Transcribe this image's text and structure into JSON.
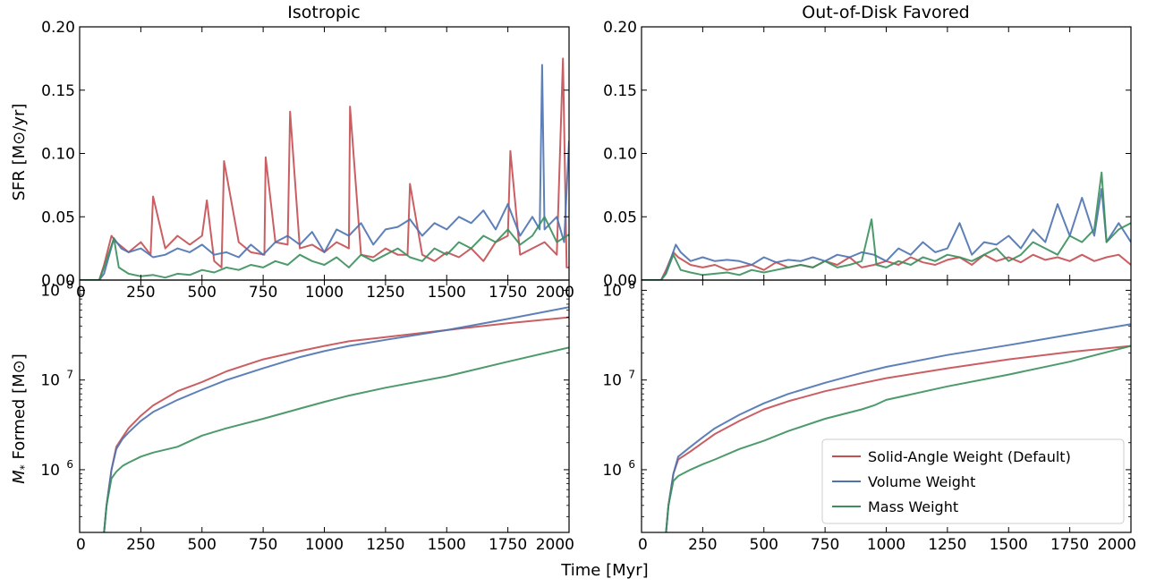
{
  "figure": {
    "xlabel": "Time [Myr]",
    "ylabel_top": "SFR [M⊙/yr]",
    "ylabel_bottom_prefix": "M",
    "ylabel_bottom_sub": "*",
    "ylabel_bottom_suffix": " Formed [M⊙]"
  },
  "legend": {
    "placement": "lower-right of bottom-right panel",
    "entries": [
      {
        "label": "Solid-Angle Weight (Default)",
        "color": "#c44e52"
      },
      {
        "label": "Volume Weight",
        "color": "#4c72b0"
      },
      {
        "label": "Mass Weight",
        "color": "#3a8f5c"
      }
    ]
  },
  "chart_data": [
    {
      "panel": "top-left",
      "type": "line",
      "title": "Isotropic",
      "xlim": [
        0,
        2000
      ],
      "ylim": [
        0,
        0.2
      ],
      "xticks": [
        "0",
        "250",
        "500",
        "750",
        "1000",
        "1250",
        "1500",
        "1750",
        "2000"
      ],
      "yticks": [
        "0.00",
        "0.05",
        "0.10",
        "0.15",
        "0.20"
      ],
      "series": [
        {
          "name": "Solid-Angle Weight (Default)",
          "color": "#c44e52",
          "x": [
            0,
            80,
            100,
            130,
            150,
            200,
            250,
            290,
            300,
            350,
            400,
            450,
            500,
            520,
            550,
            580,
            590,
            650,
            700,
            755,
            760,
            800,
            850,
            860,
            900,
            950,
            1000,
            1050,
            1100,
            1105,
            1150,
            1200,
            1250,
            1300,
            1340,
            1350,
            1400,
            1450,
            1500,
            1550,
            1600,
            1650,
            1700,
            1750,
            1760,
            1800,
            1850,
            1900,
            1950,
            1975,
            1990,
            2000
          ],
          "y": [
            0,
            0,
            0.012,
            0.035,
            0.03,
            0.022,
            0.03,
            0.02,
            0.066,
            0.025,
            0.035,
            0.028,
            0.035,
            0.063,
            0.015,
            0.01,
            0.094,
            0.03,
            0.022,
            0.02,
            0.097,
            0.03,
            0.028,
            0.133,
            0.025,
            0.028,
            0.022,
            0.03,
            0.025,
            0.137,
            0.02,
            0.018,
            0.025,
            0.02,
            0.02,
            0.076,
            0.02,
            0.015,
            0.022,
            0.018,
            0.025,
            0.015,
            0.03,
            0.035,
            0.102,
            0.02,
            0.025,
            0.03,
            0.02,
            0.175,
            0.01,
            0.01
          ]
        },
        {
          "name": "Volume Weight",
          "color": "#4c72b0",
          "x": [
            0,
            80,
            100,
            140,
            170,
            200,
            250,
            300,
            350,
            400,
            450,
            500,
            550,
            600,
            650,
            700,
            750,
            800,
            850,
            900,
            950,
            1000,
            1050,
            1100,
            1150,
            1200,
            1250,
            1300,
            1350,
            1400,
            1450,
            1500,
            1550,
            1600,
            1650,
            1700,
            1750,
            1800,
            1850,
            1880,
            1890,
            1900,
            1950,
            1980,
            2000
          ],
          "y": [
            0,
            0,
            0.005,
            0.033,
            0.025,
            0.022,
            0.025,
            0.018,
            0.02,
            0.025,
            0.022,
            0.028,
            0.02,
            0.022,
            0.018,
            0.028,
            0.02,
            0.03,
            0.035,
            0.028,
            0.038,
            0.022,
            0.04,
            0.035,
            0.045,
            0.028,
            0.04,
            0.042,
            0.048,
            0.035,
            0.045,
            0.04,
            0.05,
            0.045,
            0.055,
            0.04,
            0.06,
            0.035,
            0.05,
            0.04,
            0.17,
            0.04,
            0.05,
            0.03,
            0.11
          ]
        },
        {
          "name": "Mass Weight",
          "color": "#3a8f5c",
          "x": [
            0,
            80,
            100,
            140,
            160,
            200,
            250,
            300,
            350,
            400,
            450,
            500,
            550,
            600,
            650,
            700,
            750,
            800,
            850,
            900,
            950,
            1000,
            1050,
            1100,
            1150,
            1200,
            1250,
            1300,
            1350,
            1400,
            1450,
            1500,
            1550,
            1600,
            1650,
            1700,
            1750,
            1800,
            1850,
            1900,
            1950,
            2000
          ],
          "y": [
            0,
            0,
            0.01,
            0.033,
            0.01,
            0.005,
            0.003,
            0.004,
            0.002,
            0.005,
            0.004,
            0.008,
            0.006,
            0.01,
            0.008,
            0.012,
            0.01,
            0.015,
            0.012,
            0.02,
            0.015,
            0.012,
            0.018,
            0.01,
            0.02,
            0.015,
            0.02,
            0.025,
            0.018,
            0.015,
            0.025,
            0.02,
            0.03,
            0.025,
            0.035,
            0.03,
            0.04,
            0.028,
            0.035,
            0.05,
            0.03,
            0.036
          ]
        }
      ]
    },
    {
      "panel": "top-right",
      "type": "line",
      "title": "Out-of-Disk Favored",
      "xlim": [
        0,
        2000
      ],
      "ylim": [
        0,
        0.2
      ],
      "xticks": [],
      "yticks": [
        "0.00",
        "0.05",
        "0.10",
        "0.15",
        "0.20"
      ],
      "series": [
        {
          "name": "Solid-Angle Weight (Default)",
          "color": "#c44e52",
          "x": [
            0,
            80,
            100,
            130,
            150,
            200,
            250,
            300,
            350,
            400,
            450,
            500,
            550,
            600,
            650,
            700,
            750,
            800,
            850,
            900,
            950,
            1000,
            1050,
            1100,
            1150,
            1200,
            1250,
            1300,
            1350,
            1400,
            1450,
            1500,
            1550,
            1600,
            1650,
            1700,
            1750,
            1800,
            1850,
            1900,
            1950,
            2000
          ],
          "y": [
            0,
            0,
            0.008,
            0.022,
            0.018,
            0.012,
            0.01,
            0.012,
            0.008,
            0.01,
            0.012,
            0.008,
            0.014,
            0.01,
            0.012,
            0.01,
            0.015,
            0.012,
            0.018,
            0.01,
            0.012,
            0.015,
            0.012,
            0.018,
            0.014,
            0.012,
            0.016,
            0.018,
            0.012,
            0.02,
            0.015,
            0.018,
            0.014,
            0.02,
            0.016,
            0.018,
            0.015,
            0.02,
            0.015,
            0.018,
            0.02,
            0.012
          ]
        },
        {
          "name": "Volume Weight",
          "color": "#4c72b0",
          "x": [
            0,
            80,
            100,
            140,
            160,
            200,
            250,
            300,
            350,
            400,
            450,
            500,
            550,
            600,
            650,
            700,
            750,
            800,
            850,
            900,
            950,
            1000,
            1050,
            1100,
            1150,
            1200,
            1250,
            1300,
            1350,
            1400,
            1450,
            1500,
            1550,
            1600,
            1650,
            1700,
            1750,
            1800,
            1850,
            1880,
            1900,
            1950,
            2000
          ],
          "y": [
            0,
            0,
            0.006,
            0.028,
            0.022,
            0.015,
            0.018,
            0.015,
            0.016,
            0.015,
            0.012,
            0.018,
            0.014,
            0.016,
            0.015,
            0.018,
            0.015,
            0.02,
            0.018,
            0.022,
            0.02,
            0.015,
            0.025,
            0.02,
            0.03,
            0.022,
            0.025,
            0.045,
            0.02,
            0.03,
            0.028,
            0.035,
            0.025,
            0.04,
            0.03,
            0.06,
            0.035,
            0.065,
            0.035,
            0.072,
            0.03,
            0.045,
            0.03
          ]
        },
        {
          "name": "Mass Weight",
          "color": "#3a8f5c",
          "x": [
            0,
            80,
            100,
            130,
            160,
            200,
            250,
            300,
            350,
            400,
            450,
            500,
            550,
            600,
            650,
            700,
            750,
            800,
            850,
            900,
            940,
            960,
            1000,
            1050,
            1100,
            1150,
            1200,
            1250,
            1300,
            1350,
            1400,
            1450,
            1500,
            1550,
            1600,
            1650,
            1700,
            1750,
            1800,
            1850,
            1880,
            1900,
            1950,
            2000
          ],
          "y": [
            0,
            0,
            0.005,
            0.02,
            0.008,
            0.006,
            0.004,
            0.005,
            0.006,
            0.004,
            0.008,
            0.006,
            0.008,
            0.01,
            0.012,
            0.01,
            0.015,
            0.01,
            0.012,
            0.015,
            0.048,
            0.012,
            0.01,
            0.015,
            0.012,
            0.018,
            0.015,
            0.02,
            0.018,
            0.015,
            0.02,
            0.025,
            0.015,
            0.02,
            0.03,
            0.025,
            0.02,
            0.035,
            0.03,
            0.04,
            0.085,
            0.03,
            0.04,
            0.045
          ]
        }
      ]
    },
    {
      "panel": "bottom-left",
      "type": "line",
      "yscale": "log",
      "xlim": [
        0,
        2000
      ],
      "ylim": [
        200000,
        130000000
      ],
      "xticks": [
        "0",
        "250",
        "500",
        "750",
        "1000",
        "1250",
        "1500",
        "1750",
        "2000"
      ],
      "yticks": [
        {
          "value": 1000000,
          "base": "10",
          "exp": "6"
        },
        {
          "value": 10000000,
          "base": "10",
          "exp": "7"
        },
        {
          "value": 100000000,
          "base": "10",
          "exp": "8"
        }
      ],
      "series": [
        {
          "name": "Solid-Angle Weight (Default)",
          "color": "#c44e52",
          "x": [
            100,
            110,
            130,
            150,
            175,
            200,
            250,
            300,
            400,
            500,
            600,
            750,
            900,
            1000,
            1100,
            1250,
            1500,
            1750,
            2000
          ],
          "y": [
            200000,
            400000,
            1000000,
            1800000,
            2300000,
            2900000,
            4000000,
            5200000,
            7500000,
            9500000,
            12500000,
            17000000,
            21000000,
            24000000,
            27000000,
            30000000,
            36000000,
            43000000,
            50000000
          ]
        },
        {
          "name": "Volume Weight",
          "color": "#4c72b0",
          "x": [
            100,
            110,
            130,
            150,
            175,
            200,
            250,
            300,
            400,
            500,
            600,
            750,
            900,
            1000,
            1100,
            1250,
            1500,
            1750,
            2000
          ],
          "y": [
            200000,
            400000,
            1000000,
            1700000,
            2200000,
            2600000,
            3500000,
            4400000,
            6000000,
            7800000,
            10000000,
            13500000,
            18000000,
            21000000,
            24000000,
            28000000,
            36000000,
            48000000,
            65000000
          ]
        },
        {
          "name": "Mass Weight",
          "color": "#3a8f5c",
          "x": [
            100,
            110,
            130,
            150,
            175,
            200,
            250,
            300,
            400,
            500,
            600,
            750,
            900,
            1000,
            1100,
            1250,
            1500,
            1750,
            2000
          ],
          "y": [
            200000,
            400000,
            800000,
            950000,
            1100000,
            1200000,
            1400000,
            1550000,
            1800000,
            2400000,
            2900000,
            3700000,
            4800000,
            5700000,
            6700000,
            8200000,
            11000000,
            16000000,
            23000000
          ]
        }
      ]
    },
    {
      "panel": "bottom-right",
      "type": "line",
      "yscale": "log",
      "xlim": [
        0,
        2000
      ],
      "ylim": [
        200000,
        130000000
      ],
      "xticks": [
        "0",
        "250",
        "500",
        "750",
        "1000",
        "1250",
        "1500",
        "1750",
        "2000"
      ],
      "yticks": [
        {
          "value": 1000000,
          "base": "10",
          "exp": "6"
        },
        {
          "value": 10000000,
          "base": "10",
          "exp": "7"
        },
        {
          "value": 100000000,
          "base": "10",
          "exp": "8"
        }
      ],
      "series": [
        {
          "name": "Solid-Angle Weight (Default)",
          "color": "#c44e52",
          "x": [
            100,
            110,
            130,
            150,
            200,
            250,
            300,
            400,
            500,
            600,
            750,
            900,
            1000,
            1250,
            1500,
            1750,
            2000
          ],
          "y": [
            200000,
            400000,
            900000,
            1300000,
            1600000,
            2000000,
            2500000,
            3500000,
            4700000,
            5800000,
            7500000,
            9200000,
            10500000,
            13500000,
            17000000,
            20500000,
            24000000
          ]
        },
        {
          "name": "Volume Weight",
          "color": "#4c72b0",
          "x": [
            100,
            110,
            130,
            150,
            200,
            250,
            300,
            400,
            500,
            600,
            750,
            900,
            1000,
            1250,
            1500,
            1750,
            2000
          ],
          "y": [
            200000,
            400000,
            900000,
            1400000,
            1800000,
            2300000,
            2900000,
            4100000,
            5500000,
            7000000,
            9300000,
            12000000,
            14000000,
            19000000,
            24500000,
            32000000,
            42000000
          ]
        },
        {
          "name": "Mass Weight",
          "color": "#3a8f5c",
          "x": [
            100,
            110,
            130,
            150,
            200,
            250,
            300,
            400,
            500,
            600,
            750,
            900,
            950,
            1000,
            1250,
            1500,
            1750,
            2000
          ],
          "y": [
            200000,
            400000,
            750000,
            850000,
            1000000,
            1150000,
            1300000,
            1700000,
            2100000,
            2700000,
            3700000,
            4700000,
            5200000,
            6000000,
            8500000,
            11500000,
            16000000,
            24000000
          ]
        }
      ]
    }
  ]
}
